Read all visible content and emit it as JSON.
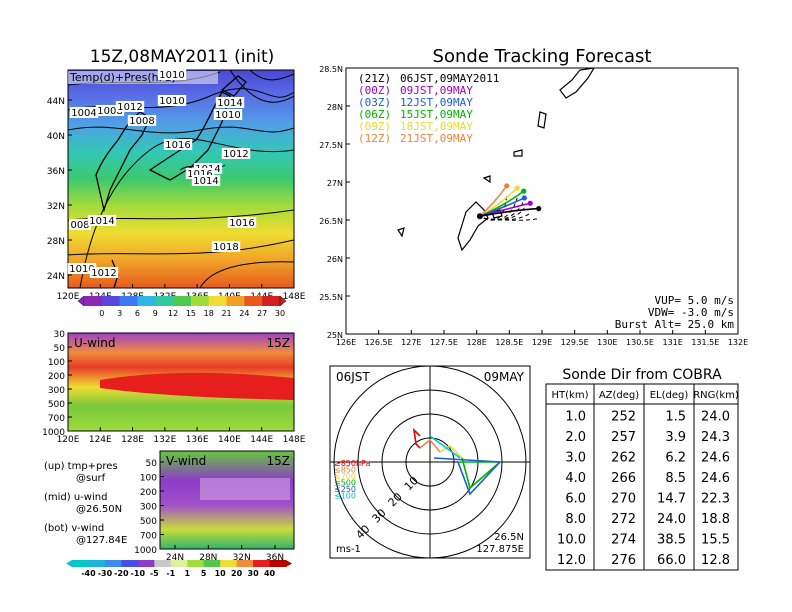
{
  "colors": {
    "frame": "#000000",
    "run_21z": "#000000",
    "run_00z": "#a000c8",
    "run_03z": "#1e5adc",
    "run_06z": "#00b400",
    "run_09z": "#e6dc32",
    "run_12z": "#f0823c",
    "land": "#000000",
    "track_dashed": "#000000"
  },
  "left": {
    "title": "15Z,08MAY2011 (init)",
    "top_map": {
      "label": "Temp(d)+Pres(hPa)",
      "x_ticks": [
        "120E",
        "124E",
        "128E",
        "132E",
        "136E",
        "140E",
        "144E",
        "148E"
      ],
      "y_ticks": [
        "24N",
        "28N",
        "32N",
        "36N",
        "40N",
        "44N"
      ],
      "isobars": [
        "1010",
        "1004",
        "1008",
        "1012",
        "1010",
        "1014",
        "1008",
        "1010",
        "1016",
        "1012",
        "1014",
        "1016",
        "1014",
        "008",
        "1014",
        "1016",
        "1018",
        "1010",
        "1012"
      ],
      "colorbar_ticks": [
        "0",
        "3",
        "6",
        "9",
        "12",
        "15",
        "18",
        "21",
        "24",
        "27",
        "30"
      ]
    },
    "u_panel": {
      "label": "U-wind",
      "time": "15Z",
      "y_ticks": [
        "30",
        "50",
        "100",
        "200",
        "300",
        "500",
        "700",
        "1000"
      ],
      "x_ticks": [
        "120E",
        "124E",
        "128E",
        "132E",
        "136E",
        "140E",
        "144E",
        "148E"
      ]
    },
    "v_panel": {
      "label": "V-wind",
      "time": "15Z",
      "y_ticks": [
        "50",
        "100",
        "200",
        "300",
        "500",
        "700",
        "1000"
      ],
      "x_ticks": [
        "24N",
        "28N",
        "32N",
        "36N"
      ]
    },
    "legend": {
      "up_1": "(up) tmp+pres",
      "up_2": "@surf",
      "mid_1": "(mid) u-wind",
      "mid_2": "@26.50N",
      "bot_1": "(bot) v-wind",
      "bot_2": "@127.84E"
    },
    "wind_colorbar_ticks": [
      "-40",
      "-30",
      "-20",
      "-10",
      "-5",
      "-1",
      "1",
      "5",
      "10",
      "20",
      "30",
      "40"
    ]
  },
  "chart_data": [
    {
      "type": "scatter",
      "title": "Sonde Tracking Forecast",
      "xlabel": "",
      "ylabel": "",
      "x_ticks": [
        "126E",
        "126.5E",
        "127E",
        "127.5E",
        "128E",
        "128.5E",
        "129E",
        "129.5E",
        "130E",
        "130.5E",
        "131E",
        "131.5E",
        "132E"
      ],
      "y_ticks": [
        "25N",
        "25.5N",
        "26N",
        "26.5N",
        "27N",
        "27.5N",
        "28N",
        "28.5N"
      ],
      "xlim": [
        126,
        132
      ],
      "ylim": [
        25,
        28.5
      ],
      "launch": [
        128.05,
        26.55
      ],
      "runs": [
        {
          "name": "(21Z)",
          "time": "06JST,09MAY2011",
          "color": "#000000",
          "end": [
            128.95,
            26.65
          ]
        },
        {
          "name": "(00Z)",
          "time": "09JST,09MAY",
          "color": "#a000c8",
          "end": [
            128.82,
            26.72
          ]
        },
        {
          "name": "(03Z)",
          "time": "12JST,09MAY",
          "color": "#1e5adc",
          "end": [
            128.73,
            26.79
          ]
        },
        {
          "name": "(06Z)",
          "time": "15JST,09MAY",
          "color": "#00b400",
          "end": [
            128.72,
            26.88
          ]
        },
        {
          "name": "(09Z)",
          "time": "18JST,09MAY",
          "color": "#e6dc32",
          "end": [
            128.62,
            26.92
          ]
        },
        {
          "name": "(12Z)",
          "time": "21JST,09MAY",
          "color": "#f0823c",
          "end": [
            128.46,
            26.95
          ]
        }
      ],
      "params": {
        "vup": "VUP= 5.0 m/s",
        "vdw": "VDW= -3.0 m/s",
        "burst": "Burst Alt= 25.0 km"
      }
    },
    {
      "type": "scatter",
      "title_left": "06JST",
      "title_right": "09MAY",
      "unit": "ms-1",
      "location_1": "26.5N",
      "location_2": "127.875E",
      "ring_labels": [
        "10",
        "20",
        "30",
        "40"
      ],
      "layer_legend": [
        {
          "label": "≥850hPa",
          "color": "#e60000"
        },
        {
          "label": "≤850",
          "color": "#f0823c"
        },
        {
          "label": "≤700",
          "color": "#e6dc32"
        },
        {
          "label": "≤500",
          "color": "#00b400"
        },
        {
          "label": "≤250",
          "color": "#1e5adc"
        },
        {
          "label": "≤100",
          "color": "#00c8c8"
        }
      ]
    },
    {
      "type": "table",
      "title": "Sonde Dir from COBRA",
      "columns": [
        "HT(km)",
        "AZ(deg)",
        "EL(deg)",
        "RNG(km)"
      ],
      "rows": [
        [
          "1.0",
          "252",
          "1.5",
          "24.0"
        ],
        [
          "2.0",
          "257",
          "3.9",
          "24.3"
        ],
        [
          "3.0",
          "262",
          "6.2",
          "24.6"
        ],
        [
          "4.0",
          "266",
          "8.5",
          "24.6"
        ],
        [
          "6.0",
          "270",
          "14.7",
          "22.3"
        ],
        [
          "8.0",
          "272",
          "24.0",
          "18.8"
        ],
        [
          "10.0",
          "274",
          "38.5",
          "15.5"
        ],
        [
          "12.0",
          "276",
          "66.0",
          "12.8"
        ]
      ]
    }
  ]
}
